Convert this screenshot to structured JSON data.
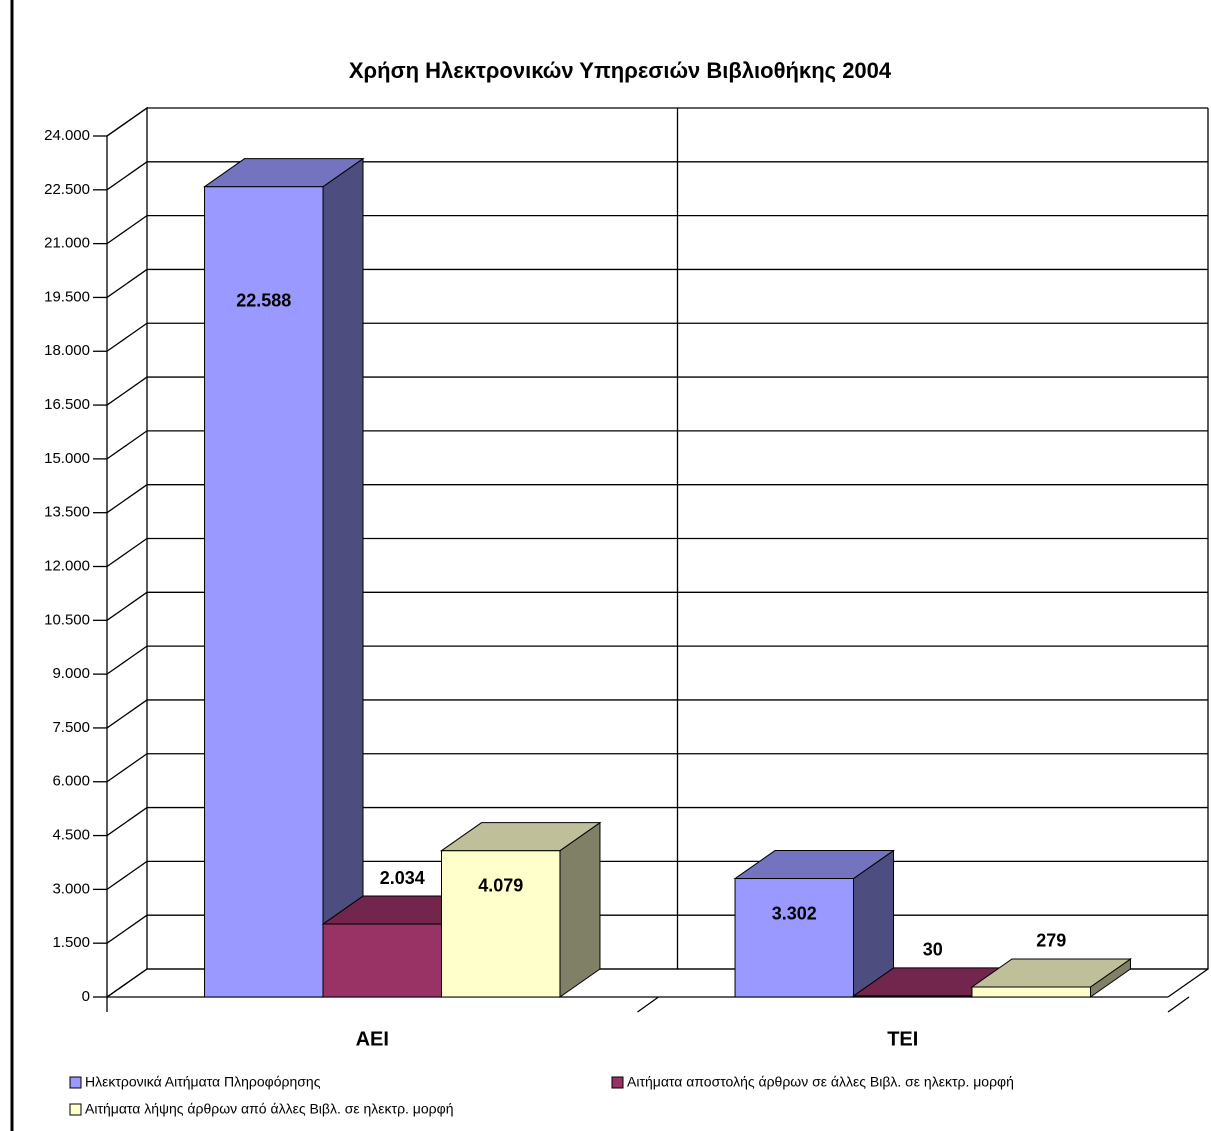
{
  "chart_data": {
    "type": "bar3d",
    "title": "Χρήση Ηλεκτρονικών Υπηρεσιών Βιβλιοθήκης 2004",
    "categories": [
      "ΑΕΙ",
      "ΤΕΙ"
    ],
    "series": [
      {
        "name": "Ηλεκτρονικά Αιτήματα Πληροφόρησης",
        "color": "#9999ff",
        "values": [
          22588,
          3302
        ],
        "value_labels": [
          "22.588",
          "3.302"
        ]
      },
      {
        "name": "Αιτήματα αποστολής άρθρων σε άλλες Βιβλ. σε ηλεκτρ. μορφή",
        "color": "#993366",
        "values": [
          2034,
          30
        ],
        "value_labels": [
          "2.034",
          "30"
        ]
      },
      {
        "name": "Αιτήματα λήψης άρθρων από άλλες Βιβλ. σε ηλεκτρ. μορφή",
        "color": "#ffffcc",
        "values": [
          4079,
          279
        ],
        "value_labels": [
          "4.079",
          "279"
        ]
      }
    ],
    "ylim": [
      0,
      24000
    ],
    "yticks": [
      0,
      {
        "value": 1500,
        "label": "1.500"
      },
      {
        "value": 3000,
        "label": "3.000"
      },
      {
        "value": 4500,
        "label": "4.500"
      },
      {
        "value": 6000,
        "label": "6.000"
      },
      {
        "value": 7500,
        "label": "7.500"
      },
      {
        "value": 9000,
        "label": "9.000"
      },
      {
        "value": 10500,
        "label": "10.500"
      },
      {
        "value": 12000,
        "label": "12.000"
      },
      {
        "value": 13500,
        "label": "13.500"
      },
      {
        "value": 15000,
        "label": "15.000"
      },
      {
        "value": 16500,
        "label": "16.500"
      },
      {
        "value": 18000,
        "label": "18.000"
      },
      {
        "value": 19500,
        "label": "19.500"
      },
      {
        "value": 21000,
        "label": "21.000"
      },
      {
        "value": 22500,
        "label": "22.500"
      },
      {
        "value": 24000,
        "label": "24.000"
      }
    ],
    "grid": true
  }
}
